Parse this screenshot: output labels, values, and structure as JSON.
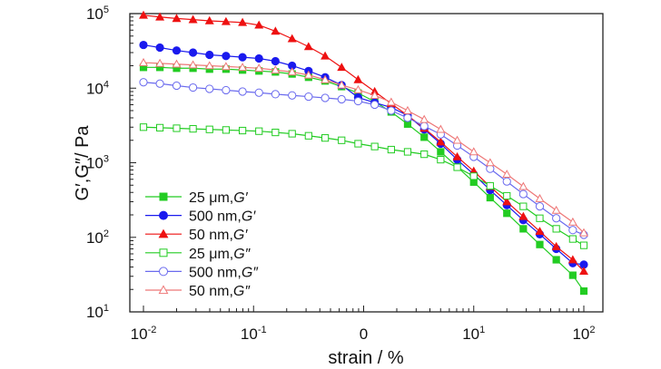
{
  "chart_data": {
    "type": "line",
    "xscale": "log",
    "yscale": "log",
    "xlim": [
      0.01,
      100
    ],
    "ylim": [
      10,
      100000
    ],
    "xlabel": "strain / %",
    "ylabel": "G′,G″/ Pa",
    "x_ticks": [
      {
        "value": 0.01,
        "base": "10",
        "exp": "-2"
      },
      {
        "value": 0.1,
        "base": "10",
        "exp": "-1"
      },
      {
        "value": 1,
        "base": "10",
        "exp": "0"
      },
      {
        "value": 10,
        "base": "10",
        "exp": "1"
      },
      {
        "value": 100,
        "base": "10",
        "exp": "2"
      }
    ],
    "y_ticks": [
      {
        "value": 10,
        "base": "10",
        "exp": "1"
      },
      {
        "value": 100,
        "base": "10",
        "exp": "2"
      },
      {
        "value": 1000,
        "base": "10",
        "exp": "3"
      },
      {
        "value": 10000,
        "base": "10",
        "exp": "4"
      },
      {
        "value": 100000,
        "base": "10",
        "exp": "5"
      }
    ],
    "x_zero_label": "0",
    "grid": false,
    "legend_position": "bottom-left",
    "x": [
      0.01,
      0.0141,
      0.02,
      0.0282,
      0.0398,
      0.0562,
      0.0794,
      0.112,
      0.158,
      0.224,
      0.316,
      0.447,
      0.631,
      0.891,
      1.26,
      1.78,
      2.51,
      3.55,
      5.01,
      7.08,
      10,
      14.1,
      20,
      28.2,
      39.8,
      56.2,
      79.4,
      100
    ],
    "series": [
      {
        "name": "25 μm,G′",
        "label_text": "25 μm,",
        "label_italic": "G′",
        "color": "#22cc22",
        "marker": "square",
        "filled": true,
        "values": [
          19000,
          19000,
          18500,
          18500,
          18000,
          18000,
          17500,
          17000,
          16500,
          15500,
          14000,
          12500,
          10500,
          8600,
          6600,
          4800,
          3300,
          2200,
          1400,
          880,
          550,
          340,
          210,
          130,
          80,
          50,
          31,
          19
        ]
      },
      {
        "name": "500 nm,G′",
        "label_text": "500 nm,",
        "label_italic": "G′",
        "color": "#1a1aee",
        "marker": "circle",
        "filled": true,
        "values": [
          38000,
          35000,
          32000,
          30000,
          28000,
          27000,
          26000,
          25000,
          23000,
          20000,
          17000,
          14000,
          11000,
          7500,
          6400,
          5500,
          4300,
          2800,
          1800,
          1100,
          700,
          430,
          270,
          170,
          110,
          70,
          45,
          43
        ]
      },
      {
        "name": "50 nm,G′",
        "label_text": "50 nm,",
        "label_italic": "G′",
        "color": "#ee1111",
        "marker": "triangle",
        "filled": true,
        "values": [
          95000,
          90000,
          86000,
          83000,
          80000,
          78000,
          76000,
          70000,
          58000,
          46000,
          36000,
          27000,
          19000,
          13000,
          9000,
          6200,
          4300,
          2900,
          1900,
          1200,
          770,
          480,
          300,
          190,
          120,
          75,
          50,
          35
        ]
      },
      {
        "name": "25 μm,G″",
        "label_text": "25 μm,",
        "label_italic": "G″",
        "color": "#22cc22",
        "marker": "square",
        "filled": false,
        "values": [
          3000,
          2950,
          2900,
          2850,
          2800,
          2750,
          2700,
          2650,
          2550,
          2450,
          2300,
          2150,
          2000,
          1800,
          1650,
          1500,
          1400,
          1300,
          1100,
          870,
          660,
          490,
          360,
          260,
          180,
          130,
          95,
          78
        ]
      },
      {
        "name": "500 nm,G″",
        "label_text": "500 nm,",
        "label_italic": "G″",
        "color": "#6a6aee",
        "marker": "circle",
        "filled": false,
        "values": [
          12000,
          11500,
          10800,
          10200,
          9800,
          9400,
          9000,
          8700,
          8300,
          8000,
          7700,
          7400,
          7100,
          6700,
          6000,
          5000,
          4000,
          3100,
          2400,
          1700,
          1200,
          830,
          560,
          380,
          260,
          180,
          125,
          108
        ]
      },
      {
        "name": "50 nm,G″",
        "label_text": "50 nm,",
        "label_italic": "G″",
        "color": "#ee7777",
        "marker": "triangle",
        "filled": false,
        "values": [
          22000,
          21500,
          21000,
          20500,
          20000,
          19500,
          19000,
          18500,
          17500,
          16500,
          15000,
          13000,
          11000,
          9500,
          8000,
          6500,
          5000,
          3800,
          2800,
          2000,
          1400,
          1000,
          700,
          480,
          330,
          230,
          160,
          115
        ]
      }
    ]
  }
}
